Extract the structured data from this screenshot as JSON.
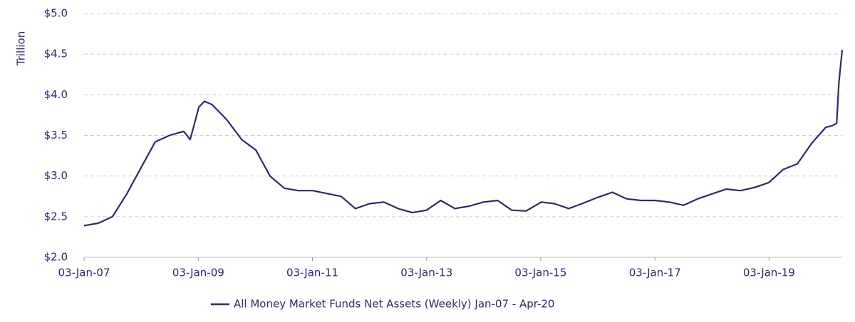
{
  "chart_data": {
    "type": "line",
    "y_label": "Trillion",
    "x": [
      "2007-01-03",
      "2007-04-04",
      "2007-07-04",
      "2007-10-03",
      "2008-01-02",
      "2008-04-02",
      "2008-07-02",
      "2008-10-01",
      "2008-11-12",
      "2009-01-07",
      "2009-02-11",
      "2009-04-01",
      "2009-07-01",
      "2009-10-07",
      "2010-01-06",
      "2010-04-07",
      "2010-07-07",
      "2010-10-06",
      "2011-01-05",
      "2011-07-06",
      "2011-10-05",
      "2012-01-04",
      "2012-04-04",
      "2012-07-04",
      "2012-10-03",
      "2013-01-02",
      "2013-04-03",
      "2013-07-03",
      "2013-10-02",
      "2014-01-01",
      "2014-04-02",
      "2014-07-02",
      "2014-10-01",
      "2015-01-07",
      "2015-04-01",
      "2015-07-01",
      "2015-10-07",
      "2016-01-06",
      "2016-04-06",
      "2016-07-06",
      "2016-10-05",
      "2017-01-04",
      "2017-04-05",
      "2017-07-05",
      "2017-10-04",
      "2018-01-03",
      "2018-04-04",
      "2018-07-04",
      "2018-10-03",
      "2019-01-02",
      "2019-04-03",
      "2019-07-03",
      "2019-10-02",
      "2020-01-01",
      "2020-02-12",
      "2020-03-11",
      "2020-03-25",
      "2020-04-15"
    ],
    "series": [
      {
        "name": "All Money Market Funds Net Assets (Weekly) Jan-07 - Apr-20",
        "color": "#2b2a6e",
        "values": [
          2.39,
          2.42,
          2.5,
          2.78,
          3.1,
          3.42,
          3.5,
          3.55,
          3.45,
          3.85,
          3.92,
          3.88,
          3.7,
          3.45,
          3.32,
          3.0,
          2.85,
          2.82,
          2.82,
          2.75,
          2.6,
          2.66,
          2.68,
          2.6,
          2.55,
          2.58,
          2.7,
          2.6,
          2.63,
          2.68,
          2.7,
          2.58,
          2.57,
          2.68,
          2.66,
          2.6,
          2.67,
          2.74,
          2.8,
          2.72,
          2.7,
          2.7,
          2.68,
          2.64,
          2.72,
          2.78,
          2.84,
          2.82,
          2.86,
          2.92,
          3.08,
          3.15,
          3.4,
          3.6,
          3.62,
          3.65,
          4.15,
          4.55
        ]
      }
    ],
    "xlim": [
      "2007-01-03",
      "2020-04-15"
    ],
    "xticks": [
      {
        "value": "2007-01-03",
        "label": "03-Jan-07"
      },
      {
        "value": "2009-01-03",
        "label": "03-Jan-09"
      },
      {
        "value": "2011-01-03",
        "label": "03-Jan-11"
      },
      {
        "value": "2013-01-03",
        "label": "03-Jan-13"
      },
      {
        "value": "2015-01-03",
        "label": "03-Jan-15"
      },
      {
        "value": "2017-01-03",
        "label": "03-Jan-17"
      },
      {
        "value": "2019-01-03",
        "label": "03-Jan-19"
      }
    ],
    "ylim": [
      2,
      5
    ],
    "yticks": [
      {
        "value": 2,
        "label": "$2.0"
      },
      {
        "value": 2.5,
        "label": "$2.5"
      },
      {
        "value": 3,
        "label": "$3.0"
      },
      {
        "value": 3.5,
        "label": "$3.5"
      },
      {
        "value": 4,
        "label": "$4.0"
      },
      {
        "value": 4.5,
        "label": "$4.5"
      },
      {
        "value": 5,
        "label": "$5.0"
      }
    ],
    "grid": true,
    "legend": "bottom"
  }
}
